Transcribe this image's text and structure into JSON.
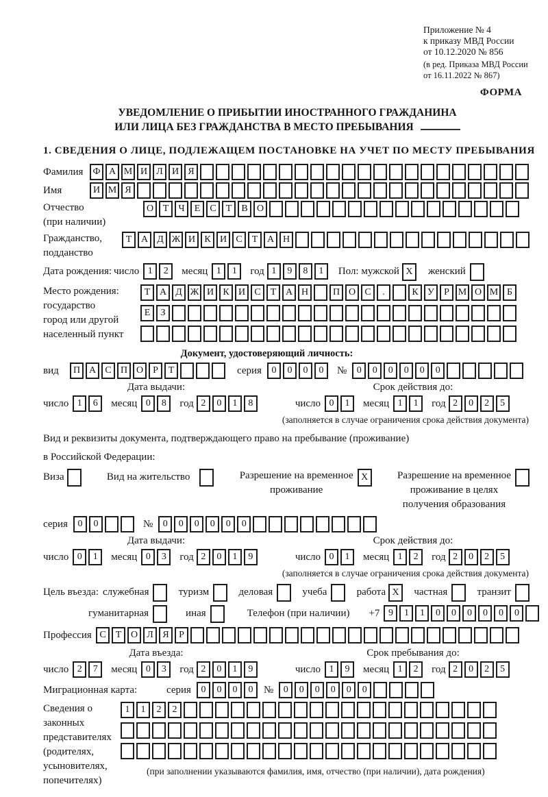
{
  "colors": {
    "ink": "#1c1c1c",
    "paper": "#ffffff"
  },
  "header": {
    "lines": [
      "Приложение № 4",
      "к приказу МВД России",
      "от 10.12.2020 № 856"
    ],
    "edition_lines": [
      "(в ред. Приказа МВД России",
      "от 16.11.2022 № 867)"
    ],
    "form_label": "ФОРМА"
  },
  "title": {
    "line1": "УВЕДОМЛЕНИЕ О ПРИБЫТИИ ИНОСТРАННОГО ГРАЖДАНИНА",
    "line2": "ИЛИ ЛИЦА БЕЗ ГРАЖДАНСТВА В МЕСТО ПРЕБЫВАНИЯ",
    "section1": "1. СВЕДЕНИЯ О ЛИЦЕ, ПОДЛЕЖАЩЕМ ПОСТАНОВКЕ НА УЧЕТ ПО МЕСТУ ПРЕБЫВАНИЯ"
  },
  "labels": {
    "surname": "Фамилия",
    "name": "Имя",
    "patronymic": "Отчество",
    "patronymic_note": "(при наличии)",
    "citizenship1": "Гражданство,",
    "citizenship2": "подданство",
    "birth_date": "Дата рождения:",
    "day": "число",
    "month": "месяц",
    "year": "год",
    "sex_male": "Пол: мужской",
    "sex_female": "женский",
    "birthplace1": "Место рождения:",
    "birthplace2": "государство",
    "birthplace3": "город или другой",
    "birthplace4": "населенный пункт",
    "id_doc_heading": "Документ, удостоверяющий личность:",
    "kind": "вид",
    "series": "серия",
    "number": "№",
    "issue_date": "Дата выдачи:",
    "valid_until": "Срок действия до:",
    "valid_note": "(заполняется в случае ограничения срока действия документа)",
    "resdoc1": "Вид и реквизиты документа, подтверждающего право на пребывание (проживание)",
    "resdoc2": "в Российской Федерации:",
    "visa": "Виза",
    "residence_permit": "Вид на жительство",
    "rvp_line1": "Разрешение на временное",
    "rvp_line2": "проживание",
    "rvp_edu_line1": "Разрешение на временное",
    "rvp_edu_line2": "проживание в целях",
    "rvp_edu_line3": "получения образования",
    "purpose": "Цель въезда:",
    "p_official": "служебная",
    "p_tourism": "туризм",
    "p_business": "деловая",
    "p_study": "учеба",
    "p_work": "работа",
    "p_private": "частная",
    "p_transit": "транзит",
    "p_humanitarian": "гуманитарная",
    "p_other": "иная",
    "phone": "Телефон (при наличии)",
    "phone_prefix": "+7",
    "profession": "Профессия",
    "entry_date": "Дата въезда:",
    "stay_until": "Срок пребывания до:",
    "migration_card": "Миграционная карта:",
    "rep1": "Сведения о",
    "rep2": "законных",
    "rep3": "представителях",
    "rep4": "(родителях,",
    "rep5": "усыновителях,",
    "rep6": "попечителях)",
    "rep_note": "(при заполнении указываются фамилия, имя, отчество (при наличии), дата рождения)"
  },
  "fields": {
    "surname": {
      "text": "ФАМИЛИЯ",
      "len": 28
    },
    "given_name": {
      "text": "ИМЯ",
      "len": 28
    },
    "patronymic": {
      "text": "ОТЧЕСТВО",
      "len": 24
    },
    "citizenship": {
      "text": "ТАДЖИКИСТАН",
      "len": 26
    },
    "birth_day": {
      "text": "12",
      "len": 2
    },
    "birth_month": {
      "text": "11",
      "len": 2
    },
    "birth_year": {
      "text": "1981",
      "len": 4
    },
    "sex_male": {
      "text": "X",
      "len": 1
    },
    "sex_female": {
      "text": "",
      "len": 1
    },
    "birthplace_r1": {
      "text": "ТАДЖИКИСТАН ПОС. КУРМОМБ",
      "len": 24
    },
    "birthplace_r2": {
      "text": "ЕЗ",
      "len": 24
    },
    "birthplace_r3": {
      "text": "",
      "len": 24
    },
    "id_kind": {
      "text": "ПАСПОРТ",
      "len": 10
    },
    "id_series": {
      "text": "0000",
      "len": 4
    },
    "id_number": {
      "text": "000000",
      "len": 11
    },
    "id_issue_day": {
      "text": "16",
      "len": 2
    },
    "id_issue_month": {
      "text": "08",
      "len": 2
    },
    "id_issue_year": {
      "text": "2018",
      "len": 4
    },
    "id_valid_day": {
      "text": "01",
      "len": 2
    },
    "id_valid_month": {
      "text": "11",
      "len": 2
    },
    "id_valid_year": {
      "text": "2025",
      "len": 4
    },
    "cb_visa": {
      "text": "",
      "len": 1
    },
    "cb_residence_permit": {
      "text": "",
      "len": 1
    },
    "cb_rvp": {
      "text": "X",
      "len": 1
    },
    "cb_rvp_edu": {
      "text": "",
      "len": 1
    },
    "res_series": {
      "text": "00",
      "len": 4
    },
    "res_number": {
      "text": "000000",
      "len": 14
    },
    "res_issue_day": {
      "text": "01",
      "len": 2
    },
    "res_issue_month": {
      "text": "03",
      "len": 2
    },
    "res_issue_year": {
      "text": "2019",
      "len": 4
    },
    "res_valid_day": {
      "text": "01",
      "len": 2
    },
    "res_valid_month": {
      "text": "12",
      "len": 2
    },
    "res_valid_year": {
      "text": "2025",
      "len": 4
    },
    "cb_official": {
      "text": "",
      "len": 1
    },
    "cb_tourism": {
      "text": "",
      "len": 1
    },
    "cb_business": {
      "text": "",
      "len": 1
    },
    "cb_study": {
      "text": "",
      "len": 1
    },
    "cb_work": {
      "text": "X",
      "len": 1
    },
    "cb_private": {
      "text": "",
      "len": 1
    },
    "cb_transit": {
      "text": "",
      "len": 1
    },
    "cb_humanitarian": {
      "text": "",
      "len": 1
    },
    "cb_other": {
      "text": "",
      "len": 1
    },
    "phone": {
      "text": "911000000",
      "len": 10
    },
    "profession": {
      "text": "СТОЛЯР",
      "len": 27
    },
    "entry_day": {
      "text": "27",
      "len": 2
    },
    "entry_month": {
      "text": "03",
      "len": 2
    },
    "entry_year": {
      "text": "2019",
      "len": 4
    },
    "stay_day": {
      "text": "19",
      "len": 2
    },
    "stay_month": {
      "text": "12",
      "len": 2
    },
    "stay_year": {
      "text": "2025",
      "len": 4
    },
    "mig_series": {
      "text": "0000",
      "len": 4
    },
    "mig_number": {
      "text": "000000",
      "len": 10
    },
    "rep_r1": {
      "text": "1122",
      "len": 24
    },
    "rep_r2": {
      "text": "",
      "len": 24
    },
    "rep_r3": {
      "text": "",
      "len": 24
    }
  }
}
